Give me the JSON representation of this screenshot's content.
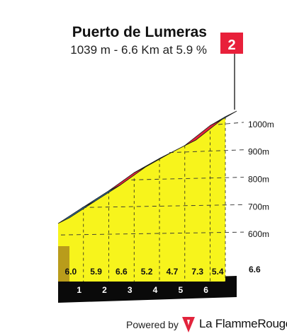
{
  "header": {
    "title": "Puerto de Lumeras",
    "subtitle": "1039 m - 6.6 Km at 5.9 %"
  },
  "flag": {
    "label": "2",
    "color": "#e8203a"
  },
  "footer": {
    "powered_by": "Powered by",
    "brand": "La FlammeRouge"
  },
  "colors": {
    "profile_face": "#f7f41c",
    "base_face": "#b99c1b",
    "km_band": "#0a0a0a",
    "top_blue": "#2d6d9a",
    "top_red": "#e2243c"
  },
  "chart_data": {
    "type": "area",
    "title": "Puerto de Lumeras",
    "xlabel": "",
    "ylabel": "",
    "elevation_ticks": [
      "600m",
      "700m",
      "800m",
      "900m",
      "1000m"
    ],
    "km_markers": [
      "1",
      "2",
      "3",
      "4",
      "5",
      "6"
    ],
    "total_distance_label": "6.6",
    "segments": [
      {
        "km_start": 0,
        "km_end": 1,
        "gradient": 6.0,
        "gradient_label": "6.0",
        "color": "blue"
      },
      {
        "km_start": 1,
        "km_end": 2,
        "gradient": 5.9,
        "gradient_label": "5.9",
        "color": "blue"
      },
      {
        "km_start": 2,
        "km_end": 3,
        "gradient": 6.6,
        "gradient_label": "6.6",
        "color": "red"
      },
      {
        "km_start": 3,
        "km_end": 4,
        "gradient": 5.2,
        "gradient_label": "5.2",
        "color": "blue"
      },
      {
        "km_start": 4,
        "km_end": 5,
        "gradient": 4.7,
        "gradient_label": "4.7",
        "color": "blue"
      },
      {
        "km_start": 5,
        "km_end": 6,
        "gradient": 7.3,
        "gradient_label": "7.3",
        "color": "red"
      },
      {
        "km_start": 6,
        "km_end": 6.6,
        "gradient": 5.4,
        "gradient_label": "5.4",
        "color": "blue"
      }
    ],
    "elevations_m": [
      650,
      710,
      769,
      835,
      887,
      934,
      1007,
      1039
    ],
    "summit_elevation_m": 1039,
    "ylim": [
      555,
      1039
    ],
    "xlim": [
      0,
      6.6
    ]
  }
}
